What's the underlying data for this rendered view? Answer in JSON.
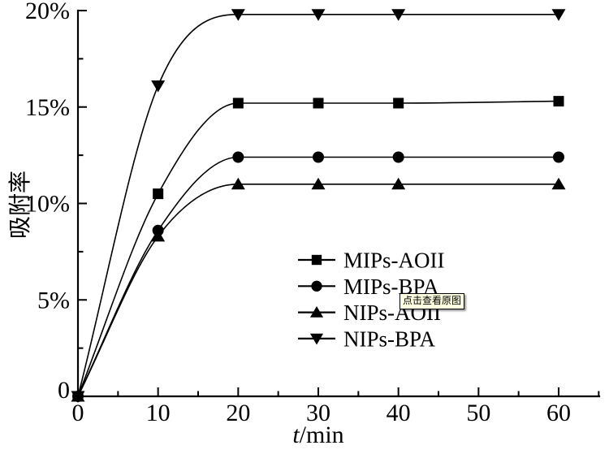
{
  "figure": {
    "background": "#ffffff",
    "ink_color": "#000000"
  },
  "overlay": {
    "badge_label": "点击查看原图",
    "badge_bg": "#ffffe1"
  },
  "chart_data": {
    "type": "line",
    "title": "",
    "xlabel": "t/min",
    "ylabel": "吸附率",
    "x": [
      0,
      10,
      20,
      30,
      40,
      60
    ],
    "xlim": [
      0,
      65
    ],
    "ylim": [
      0,
      20
    ],
    "x_major_ticks": [
      0,
      10,
      20,
      30,
      40,
      50,
      60
    ],
    "x_minor_ticks": [
      5,
      15,
      25,
      35,
      45,
      55,
      65
    ],
    "y_major_ticks": [
      0,
      5,
      10,
      15,
      20
    ],
    "y_minor_ticks": [
      2.5,
      7.5,
      12.5,
      17.5
    ],
    "y_tick_suffix": "%",
    "grid": false,
    "legend_position": "inside-right-center",
    "series": [
      {
        "name": "MIPs-AOII",
        "marker": "square",
        "values": [
          0,
          10.5,
          15.2,
          15.2,
          15.2,
          15.3
        ]
      },
      {
        "name": "MIPs-BPA",
        "marker": "circle",
        "values": [
          0,
          8.6,
          12.4,
          12.4,
          12.4,
          12.4
        ]
      },
      {
        "name": "NIPs-AOII",
        "marker": "triangle-up",
        "values": [
          0,
          8.3,
          11.0,
          11.0,
          11.0,
          11.0
        ]
      },
      {
        "name": "NIPs-BPA",
        "marker": "triangle-down",
        "values": [
          0,
          16.1,
          19.8,
          19.8,
          19.8,
          19.8
        ]
      }
    ]
  }
}
